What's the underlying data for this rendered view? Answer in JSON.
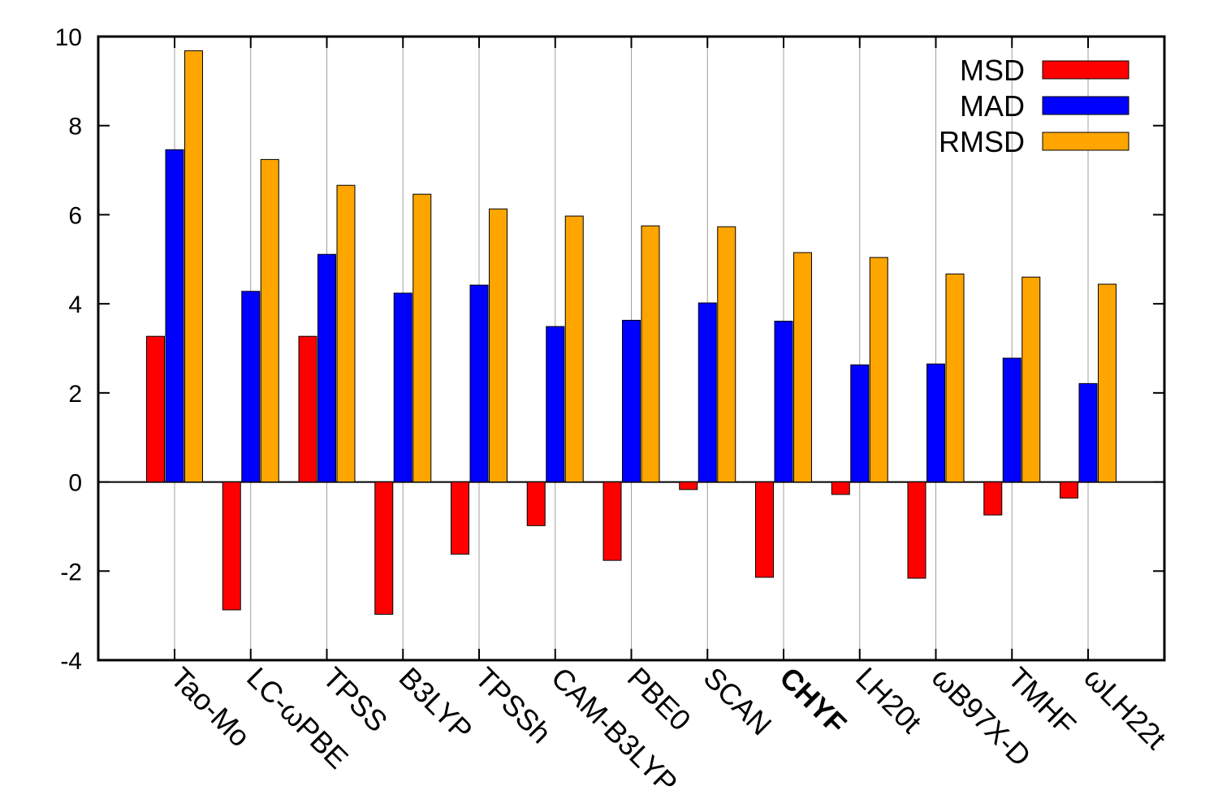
{
  "chart_data": {
    "type": "bar",
    "title": "",
    "xlabel": "",
    "ylabel": "",
    "ylim": [
      -4,
      10
    ],
    "yticks": [
      -4,
      -2,
      0,
      2,
      4,
      6,
      8,
      10
    ],
    "ytick_labels": [
      "-4",
      "-2",
      "0",
      "2",
      "4",
      "6",
      "8",
      "10"
    ],
    "grid": "vertical",
    "legend_position": "top-right",
    "categories": [
      "Tao-Mo",
      "LC-ωPBE",
      "TPSS",
      "B3LYP",
      "TPSSh",
      "CAM-B3LYP",
      "PBE0",
      "SCAN",
      "CHYF",
      "LH20t",
      "ωB97X-D",
      "TMHF",
      "ωLH22t"
    ],
    "highlighted_category": "CHYF",
    "series": [
      {
        "name": "MSD",
        "color": "#ff0000",
        "values": [
          3.27,
          -2.87,
          3.27,
          -2.97,
          -1.62,
          -0.98,
          -1.76,
          -0.17,
          -2.14,
          -0.28,
          -2.16,
          -0.74,
          -0.36
        ]
      },
      {
        "name": "MAD",
        "color": "#0000ff",
        "values": [
          7.46,
          4.28,
          5.11,
          4.24,
          4.42,
          3.49,
          3.63,
          4.02,
          3.61,
          2.63,
          2.65,
          2.78,
          2.21
        ]
      },
      {
        "name": "RMSD",
        "color": "#ffa500",
        "values": [
          9.68,
          7.24,
          6.66,
          6.46,
          6.13,
          5.97,
          5.75,
          5.73,
          5.15,
          5.04,
          4.67,
          4.6,
          4.44
        ]
      }
    ]
  }
}
